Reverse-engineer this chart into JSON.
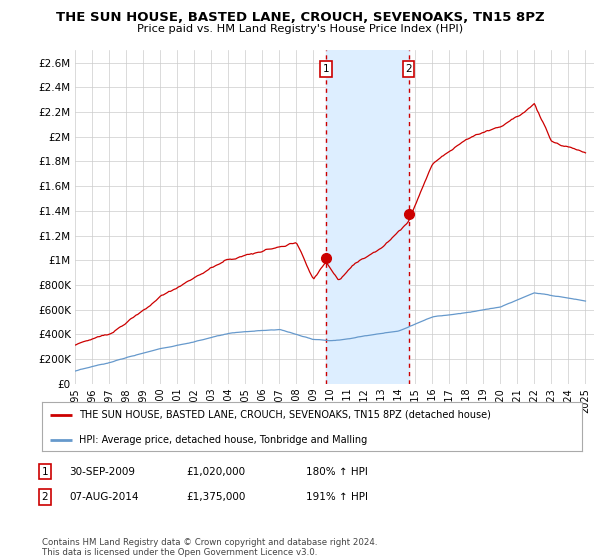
{
  "title": "THE SUN HOUSE, BASTED LANE, CROUCH, SEVENOAKS, TN15 8PZ",
  "subtitle": "Price paid vs. HM Land Registry's House Price Index (HPI)",
  "ylim": [
    0,
    2700000
  ],
  "yticks": [
    0,
    200000,
    400000,
    600000,
    800000,
    1000000,
    1200000,
    1400000,
    1600000,
    1800000,
    2000000,
    2200000,
    2400000,
    2600000
  ],
  "ytick_labels": [
    "£0",
    "£200K",
    "£400K",
    "£600K",
    "£800K",
    "£1M",
    "£1.2M",
    "£1.4M",
    "£1.6M",
    "£1.8M",
    "£2M",
    "£2.2M",
    "£2.4M",
    "£2.6M"
  ],
  "hpi_color": "#6699cc",
  "property_color": "#cc0000",
  "highlight_color": "#ddeeff",
  "marker1_x": 2009.75,
  "marker2_x": 2014.6,
  "marker1_y": 1020000,
  "marker2_y": 1375000,
  "xlim_left": 1995,
  "xlim_right": 2025.5,
  "legend_property": "THE SUN HOUSE, BASTED LANE, CROUCH, SEVENOAKS, TN15 8PZ (detached house)",
  "legend_hpi": "HPI: Average price, detached house, Tonbridge and Malling",
  "table_rows": [
    {
      "num": "1",
      "date": "30-SEP-2009",
      "price": "£1,020,000",
      "hpi": "180% ↑ HPI"
    },
    {
      "num": "2",
      "date": "07-AUG-2014",
      "price": "£1,375,000",
      "hpi": "191% ↑ HPI"
    }
  ],
  "footer": "Contains HM Land Registry data © Crown copyright and database right 2024.\nThis data is licensed under the Open Government Licence v3.0.",
  "background_color": "#ffffff",
  "grid_color": "#cccccc"
}
